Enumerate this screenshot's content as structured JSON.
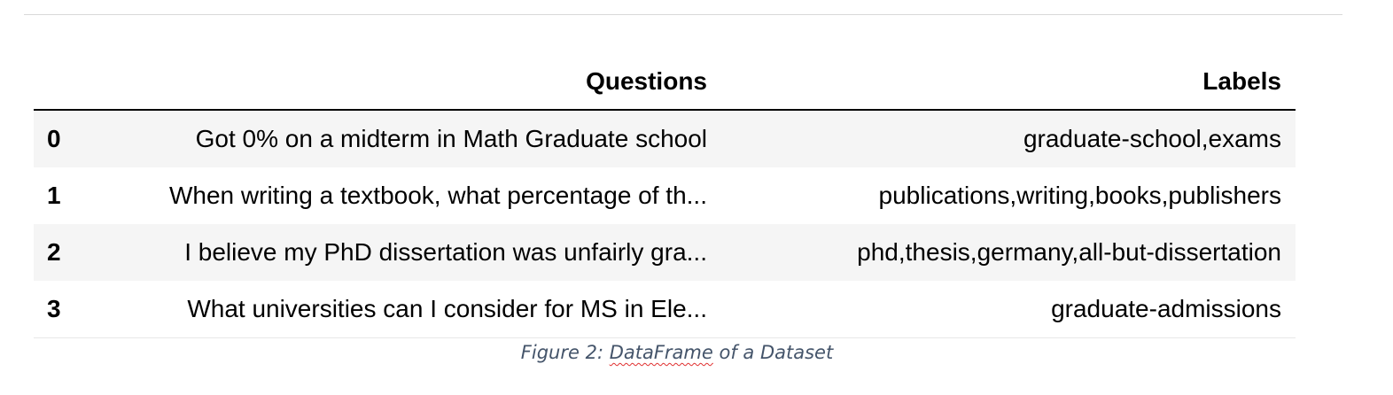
{
  "table": {
    "columns": [
      "",
      "Questions",
      "Labels"
    ],
    "rows": [
      {
        "index": "0",
        "question": "Got 0% on a midterm in Math Graduate school",
        "labels": "graduate-school,exams"
      },
      {
        "index": "1",
        "question": "When writing a textbook, what percentage of th...",
        "labels": "publications,writing,books,publishers"
      },
      {
        "index": "2",
        "question": "I believe my PhD dissertation was unfairly gra...",
        "labels": "phd,thesis,germany,all-but-dissertation"
      },
      {
        "index": "3",
        "question": "What universities can I consider for MS in Ele...",
        "labels": "graduate-admissions"
      }
    ]
  },
  "caption": {
    "prefix": "Figure 2: ",
    "flagged_word": "DataFrame",
    "suffix": " of a Dataset"
  },
  "colors": {
    "striped_row": "#f5f5f5",
    "caption_text": "#44546a",
    "spellcheck_underline": "#e03030"
  }
}
